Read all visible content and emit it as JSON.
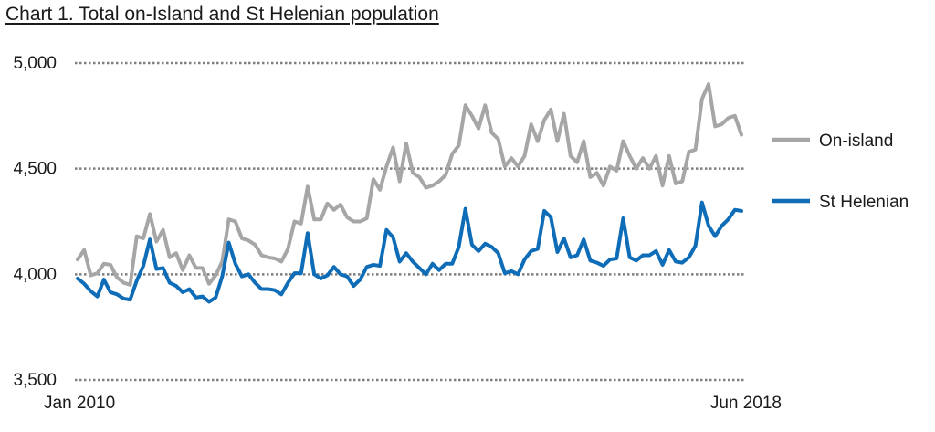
{
  "title": "Chart 1. Total on-Island and St Helenian population",
  "chart_data": {
    "type": "line",
    "title": "Chart 1. Total on-Island and St Helenian population",
    "xlabel": "",
    "ylabel": "",
    "x_start": "Jan 2010",
    "x_end": "Jun 2018",
    "x_tick_labels": [
      "Jan 2010",
      "Jun 2018"
    ],
    "y_ticks": [
      3500,
      4000,
      4500,
      5000
    ],
    "y_tick_labels": [
      "3,500",
      "4,000",
      "4,500",
      "5,000"
    ],
    "ylim": [
      3500,
      5000
    ],
    "grid": "horizontal dotted",
    "legend_position": "right",
    "series": [
      {
        "name": "On-island",
        "color": "#a6a6a6",
        "values": [
          4070,
          4115,
          3995,
          4005,
          4050,
          4045,
          3985,
          3960,
          3950,
          4180,
          4170,
          4285,
          4155,
          4210,
          4080,
          4100,
          4020,
          4090,
          4030,
          4030,
          3955,
          3995,
          4060,
          4260,
          4250,
          4170,
          4160,
          4140,
          4090,
          4080,
          4075,
          4060,
          4120,
          4250,
          4240,
          4415,
          4260,
          4260,
          4335,
          4305,
          4330,
          4270,
          4250,
          4250,
          4265,
          4450,
          4400,
          4510,
          4600,
          4440,
          4620,
          4480,
          4460,
          4410,
          4420,
          4440,
          4470,
          4570,
          4610,
          4800,
          4750,
          4690,
          4800,
          4670,
          4640,
          4510,
          4550,
          4510,
          4560,
          4710,
          4630,
          4730,
          4780,
          4630,
          4760,
          4560,
          4530,
          4630,
          4460,
          4480,
          4420,
          4510,
          4490,
          4630,
          4560,
          4500,
          4550,
          4500,
          4560,
          4420,
          4560,
          4430,
          4440,
          4580,
          4590,
          4830,
          4900,
          4700,
          4710,
          4740,
          4750,
          4660
        ]
      },
      {
        "name": "St Helenian",
        "color": "#0f6db8",
        "values": [
          3980,
          3955,
          3920,
          3895,
          3975,
          3915,
          3905,
          3885,
          3880,
          3970,
          4040,
          4165,
          4025,
          4030,
          3960,
          3945,
          3915,
          3930,
          3890,
          3895,
          3870,
          3890,
          3990,
          4150,
          4050,
          3990,
          4000,
          3960,
          3930,
          3930,
          3925,
          3905,
          3960,
          4005,
          4005,
          4195,
          4000,
          3980,
          3995,
          4035,
          4000,
          3990,
          3945,
          3975,
          4035,
          4045,
          4040,
          4210,
          4175,
          4060,
          4100,
          4060,
          4030,
          4000,
          4050,
          4020,
          4050,
          4050,
          4130,
          4310,
          4140,
          4110,
          4145,
          4130,
          4100,
          4005,
          4015,
          4000,
          4070,
          4110,
          4120,
          4300,
          4270,
          4105,
          4170,
          4080,
          4090,
          4165,
          4065,
          4055,
          4040,
          4070,
          4075,
          4265,
          4080,
          4065,
          4090,
          4090,
          4110,
          4045,
          4115,
          4060,
          4055,
          4080,
          4135,
          4340,
          4230,
          4180,
          4230,
          4260,
          4305,
          4300
        ]
      }
    ]
  }
}
